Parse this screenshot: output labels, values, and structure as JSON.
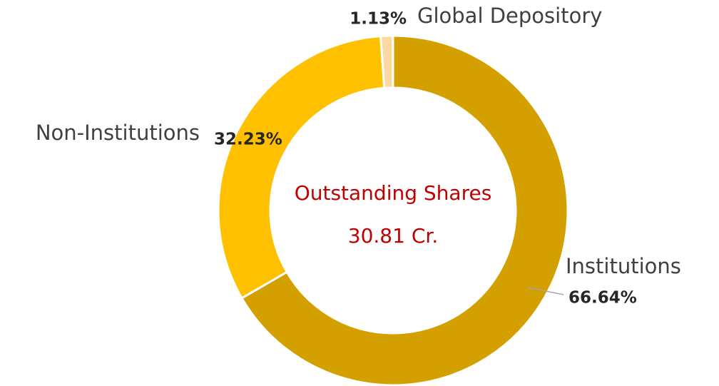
{
  "chart_data": {
    "type": "donut",
    "categories": [
      "Institutions",
      "Non-Institutions",
      "Global Depository"
    ],
    "values": [
      66.64,
      32.23,
      1.13
    ],
    "value_labels": [
      "66.64%",
      "32.23%",
      "1.13%"
    ],
    "colors": [
      "#d4a000",
      "#ffc000",
      "#fcd8a2"
    ],
    "center_title": "Outstanding Shares",
    "center_value": "30.81 Cr."
  }
}
